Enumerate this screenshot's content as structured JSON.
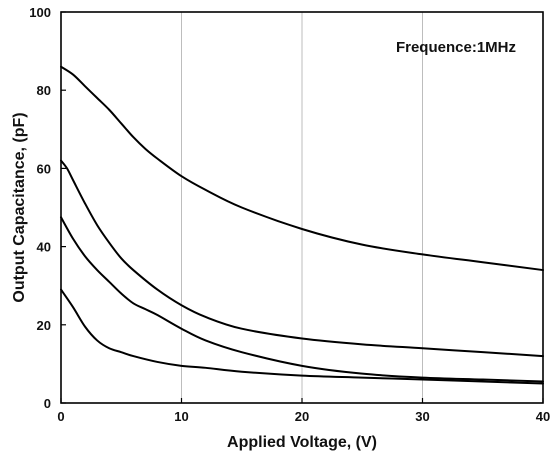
{
  "chart_data": {
    "type": "line",
    "title": "",
    "xlabel": "Applied Voltage, (V)",
    "ylabel": "Output Capacitance, (pF)",
    "xlim": [
      0,
      40
    ],
    "ylim": [
      0,
      100
    ],
    "xticks": [
      0,
      10,
      20,
      30,
      40
    ],
    "yticks": [
      0,
      20,
      40,
      60,
      80,
      100
    ],
    "grid": "vertical",
    "annotation": "Frequence:1MHz",
    "series": [
      {
        "x": [
          0,
          1,
          2,
          3,
          4,
          5,
          6,
          7,
          8,
          10,
          12,
          15,
          20,
          25,
          30,
          35,
          40
        ],
        "y": [
          86,
          84,
          81,
          78,
          75,
          71.5,
          68,
          65,
          62.5,
          58,
          54.5,
          50,
          44.5,
          40.5,
          38,
          36,
          34
        ]
      },
      {
        "x": [
          0,
          0.5,
          1,
          2,
          3,
          4,
          5,
          6,
          8,
          10,
          12,
          15,
          20,
          25,
          30,
          35,
          40
        ],
        "y": [
          62,
          60,
          57,
          51,
          45.5,
          41,
          37,
          34,
          29,
          25,
          22,
          19,
          16.5,
          15,
          14,
          13,
          12
        ]
      },
      {
        "x": [
          0,
          1,
          2,
          3,
          4,
          5,
          6,
          7,
          8,
          10,
          12,
          15,
          20,
          25,
          30,
          35,
          40
        ],
        "y": [
          47.5,
          42,
          37.5,
          34,
          31,
          28,
          25.5,
          24,
          22.5,
          19,
          16,
          13,
          9.5,
          7.5,
          6.5,
          6,
          5.5
        ]
      },
      {
        "x": [
          0,
          1,
          2,
          3,
          4,
          5,
          6,
          8,
          10,
          12,
          15,
          20,
          25,
          30,
          35,
          40
        ],
        "y": [
          29,
          24.5,
          19.5,
          16,
          14,
          13,
          12,
          10.5,
          9.5,
          9,
          8,
          7,
          6.5,
          6,
          5.5,
          5
        ]
      }
    ]
  }
}
